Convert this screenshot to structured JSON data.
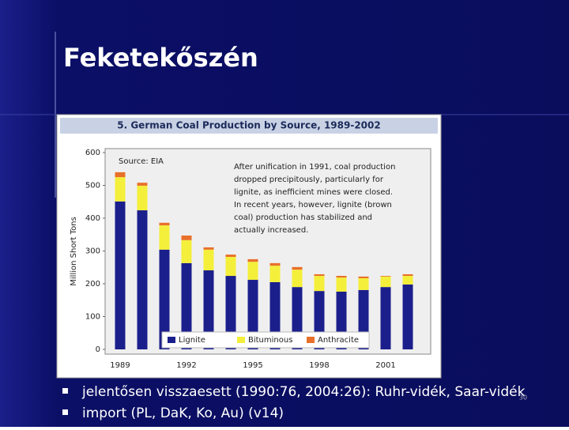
{
  "slide_title": "Feketekőszén",
  "bullets": [
    "jelentősen visszaesett (1990:76, 2004:26): Ruhr-vidék, Saar-vidék",
    "import (PL, DaK, Ko, Au) (v14)"
  ],
  "page_number": "30",
  "chart_data": {
    "type": "stacked-bar",
    "title": "5. German Coal Production by Source, 1989-2002",
    "ylabel": "Million Short Tons",
    "source": "Source: EIA",
    "annotation": [
      "After unification in 1991, coal production",
      "dropped precipitously, particularly for",
      "lignite, as inefficient mines were closed.",
      "In recent years, however, lignite (brown",
      "coal) production has stabilized and",
      "actually increased."
    ],
    "categories": [
      "1989",
      null,
      null,
      "1992",
      null,
      null,
      "1995",
      null,
      null,
      "1998",
      null,
      null,
      "2001",
      null
    ],
    "series": [
      {
        "name": "Lignite",
        "color": "#1b1f8c",
        "values": [
          451,
          424,
          304,
          263,
          241,
          224,
          212,
          205,
          190,
          178,
          176,
          181,
          190,
          198
        ]
      },
      {
        "name": "Bituminous",
        "color": "#f4ef3a",
        "values": [
          74,
          75,
          74,
          70,
          63,
          58,
          55,
          50,
          53,
          46,
          43,
          36,
          32,
          26
        ]
      },
      {
        "name": "Anthracite",
        "color": "#e8702a",
        "values": [
          15,
          9,
          8,
          14,
          7,
          7,
          8,
          8,
          8,
          5,
          5,
          5,
          2,
          5
        ]
      }
    ],
    "ylim": [
      0,
      600
    ],
    "yticks": [
      0,
      100,
      200,
      300,
      400,
      500,
      600
    ],
    "legend": "bottom"
  }
}
